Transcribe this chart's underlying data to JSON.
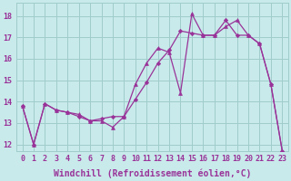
{
  "xlabel": "Windchill (Refroidissement éolien,°C)",
  "bg_color": "#c8eaea",
  "grid_color": "#a0cccc",
  "line_color": "#993399",
  "xlim": [
    -0.5,
    23.5
  ],
  "ylim": [
    11.7,
    18.6
  ],
  "xticks": [
    0,
    1,
    2,
    3,
    4,
    5,
    6,
    7,
    8,
    9,
    10,
    11,
    12,
    13,
    14,
    15,
    16,
    17,
    18,
    19,
    20,
    21,
    22,
    23
  ],
  "yticks": [
    12,
    13,
    14,
    15,
    16,
    17,
    18
  ],
  "line1_x": [
    0,
    1,
    2,
    3,
    4,
    5,
    6,
    7,
    8,
    9,
    10,
    11,
    12,
    13,
    14,
    15,
    16,
    17,
    18,
    19,
    20,
    21,
    22,
    23
  ],
  "line1_y": [
    13.8,
    12.0,
    13.9,
    13.6,
    13.5,
    13.3,
    13.1,
    13.2,
    13.3,
    13.3,
    14.1,
    14.9,
    15.8,
    16.4,
    17.3,
    17.2,
    17.1,
    17.1,
    17.8,
    17.1,
    17.1,
    16.7,
    14.8,
    11.7
  ],
  "line2_x": [
    0,
    1,
    2,
    3,
    4,
    5,
    6,
    7,
    8,
    9,
    10,
    11,
    12,
    13,
    14,
    15,
    16,
    17,
    18,
    19,
    20,
    21,
    22,
    23
  ],
  "line2_y": [
    13.8,
    12.0,
    13.9,
    13.6,
    13.5,
    13.4,
    13.1,
    13.1,
    12.8,
    13.3,
    14.8,
    15.8,
    16.5,
    16.3,
    14.4,
    18.1,
    17.1,
    17.1,
    17.5,
    17.8,
    17.1,
    16.7,
    14.8,
    11.7
  ],
  "tick_fontsize": 6,
  "label_fontsize": 7
}
